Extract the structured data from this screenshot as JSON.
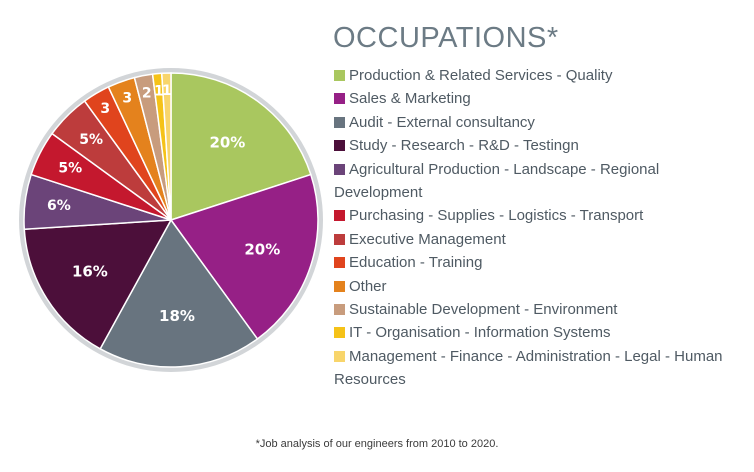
{
  "chart_data": {
    "type": "pie",
    "title": "OCCUPATIONS*",
    "slices": [
      {
        "label": "Production & Related Services - Quality",
        "value": 20,
        "display": "20%",
        "color": "#a9c75f"
      },
      {
        "label": "Sales & Marketing",
        "value": 20,
        "display": "20%",
        "color": "#962086"
      },
      {
        "label": "Audit - External consultancy",
        "value": 18,
        "display": "18%",
        "color": "#68747f"
      },
      {
        "label": "Study - Research - R&D - Testingn",
        "value": 16,
        "display": "16%",
        "color": "#4c0f3a"
      },
      {
        "label": "Agricultural Production - Landscape - Regional",
        "label_cont": "Development",
        "value": 6,
        "display": "6%",
        "color": "#6b4479"
      },
      {
        "label": "Purchasing - Supplies - Logistics - Transport",
        "value": 5,
        "display": "5%",
        "color": "#c4182e"
      },
      {
        "label": "Executive Management",
        "value": 5,
        "display": "5%",
        "color": "#bd3c3c"
      },
      {
        "label": "Education - Training",
        "value": 3,
        "display": "3",
        "color": "#e0441d"
      },
      {
        "label": "Other",
        "value": 3,
        "display": "3",
        "color": "#e4821d"
      },
      {
        "label": "Sustainable Development - Environment",
        "value": 2,
        "display": "2",
        "color": "#c89c7d"
      },
      {
        "label": "IT - Organisation - Information Systems",
        "value": 1,
        "display": "1",
        "color": "#f5c218"
      },
      {
        "label": "Management - Finance - Administration - Legal - Human",
        "label_cont": "Resources",
        "value": 1,
        "display": "1",
        "color": "#f8d56b"
      }
    ],
    "legend_position": "right"
  },
  "footnote": "*Job analysis of our engineers from 2010 to 2020."
}
